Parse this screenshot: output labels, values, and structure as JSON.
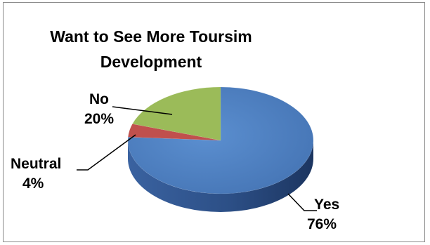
{
  "chart_data": {
    "type": "pie",
    "title": "Want to See More Toursim Development",
    "categories": [
      "Yes",
      "Neutral",
      "No"
    ],
    "values": [
      76,
      4,
      20
    ],
    "value_labels": [
      "76%",
      "4%",
      "20%"
    ],
    "colors": [
      "#4f81bd",
      "#c0504d",
      "#9bbb59"
    ],
    "legend": "none",
    "style": "3d"
  }
}
